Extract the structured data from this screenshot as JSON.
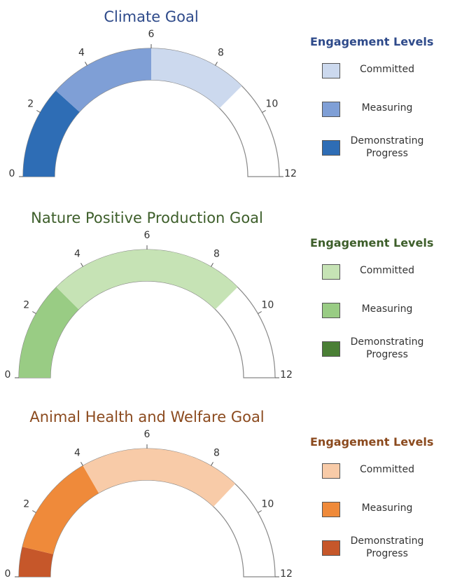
{
  "chart_data": [
    {
      "type": "gauge",
      "title": "Climate Goal",
      "legend_title": "Engagement Levels",
      "title_color": "#2e4a8a",
      "legend_title_color": "#2e4a8a",
      "xlim": [
        0,
        12
      ],
      "xticks": [
        0,
        2,
        4,
        6,
        8,
        10,
        12
      ],
      "series": [
        {
          "name": "Committed",
          "color": "#ccd9ee",
          "value": 3.0
        },
        {
          "name": "Measuring",
          "color": "#7f9fd6",
          "value": 3.2
        },
        {
          "name": "Demonstrating Progress",
          "color": "#2e6db5",
          "value": 2.8
        }
      ]
    },
    {
      "type": "gauge",
      "title": "Nature Positive Production Goal",
      "legend_title": "Engagement Levels",
      "title_color": "#3d5e2a",
      "legend_title_color": "#3d5e2a",
      "xlim": [
        0,
        12
      ],
      "xticks": [
        0,
        2,
        4,
        6,
        8,
        10,
        12
      ],
      "series": [
        {
          "name": "Committed",
          "color": "#c6e3b5",
          "value": 6.0
        },
        {
          "name": "Measuring",
          "color": "#99cc84",
          "value": 3.0
        },
        {
          "name": "Demonstrating Progress",
          "color": "#4a7f35",
          "value": 0
        }
      ]
    },
    {
      "type": "gauge",
      "title": "Animal Health and Welfare Goal",
      "legend_title": "Engagement Levels",
      "title_color": "#8b4a1e",
      "legend_title_color": "#8b4a1e",
      "xlim": [
        0,
        12
      ],
      "xticks": [
        0,
        2,
        4,
        6,
        8,
        10,
        12
      ],
      "series": [
        {
          "name": "Committed",
          "color": "#f8cba8",
          "value": 4.9
        },
        {
          "name": "Measuring",
          "color": "#ef8a3a",
          "value": 3.1
        },
        {
          "name": "Demonstrating Progress",
          "color": "#c6572a",
          "value": 0.9
        }
      ]
    }
  ]
}
